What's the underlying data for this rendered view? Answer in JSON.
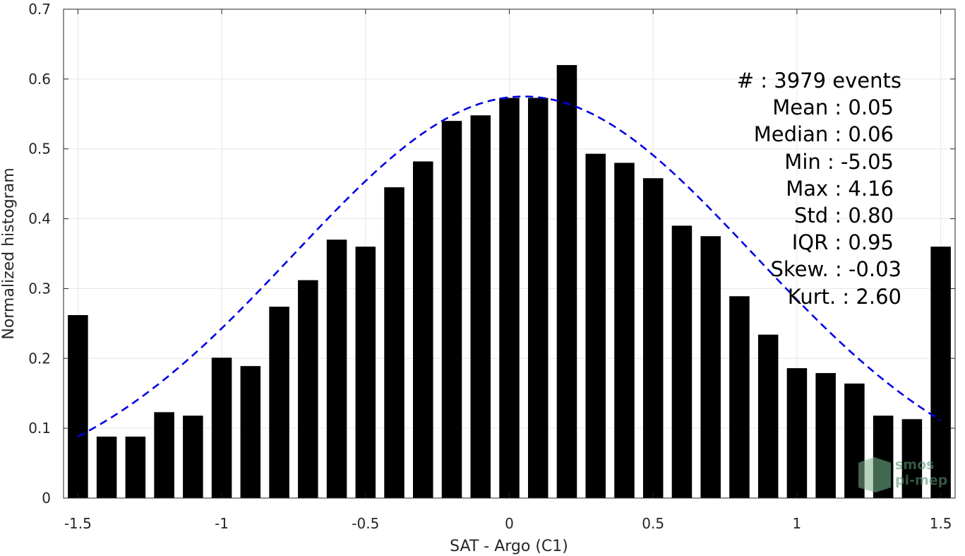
{
  "chart_data": {
    "type": "bar",
    "xlabel": "SAT - Argo (C1)",
    "ylabel": "Normalized histogram",
    "xlim": [
      -1.55,
      1.55
    ],
    "ylim": [
      0,
      0.7
    ],
    "xticks": [
      -1.5,
      -1,
      -0.5,
      0,
      0.5,
      1,
      1.5
    ],
    "xtick_labels": [
      "-1.5",
      "-1",
      "-0.5",
      "0",
      "0.5",
      "1",
      "1.5"
    ],
    "yticks": [
      0,
      0.1,
      0.2,
      0.3,
      0.4,
      0.5,
      0.6,
      0.7
    ],
    "ytick_labels": [
      "0",
      "0.1",
      "0.2",
      "0.3",
      "0.4",
      "0.5",
      "0.6",
      "0.7"
    ],
    "grid": true,
    "bar_color": "#000000",
    "bins": [
      -1.5,
      -1.4,
      -1.3,
      -1.2,
      -1.1,
      -1.0,
      -0.9,
      -0.8,
      -0.7,
      -0.6,
      -0.5,
      -0.4,
      -0.3,
      -0.2,
      -0.1,
      0.0,
      0.1,
      0.2,
      0.3,
      0.4,
      0.5,
      0.6,
      0.7,
      0.8,
      0.9,
      1.0,
      1.1,
      1.2,
      1.3,
      1.4,
      1.5
    ],
    "values": [
      0.262,
      0.088,
      0.088,
      0.123,
      0.118,
      0.201,
      0.189,
      0.274,
      0.312,
      0.37,
      0.36,
      0.445,
      0.482,
      0.54,
      0.548,
      0.573,
      0.573,
      0.62,
      0.493,
      0.48,
      0.458,
      0.39,
      0.375,
      0.289,
      0.234,
      0.186,
      0.179,
      0.164,
      0.118,
      0.113,
      0.36
    ],
    "fit_curve": {
      "type": "gaussian",
      "mean": 0.05,
      "std": 0.8,
      "peak": 0.575,
      "x_range": [
        -1.5,
        1.5
      ],
      "color": "#0000e6",
      "style": "dashed"
    },
    "stats_lines": [
      "#  : 3979 events",
      "Mean : 0.05",
      "Median : 0.06",
      "Min : -5.05",
      "Max : 4.16",
      "Std : 0.80",
      "IQR : 0.95",
      "Skew. : -0.03",
      "Kurt. : 2.60"
    ],
    "logo_lines": [
      "smos",
      "pi-mep"
    ]
  }
}
